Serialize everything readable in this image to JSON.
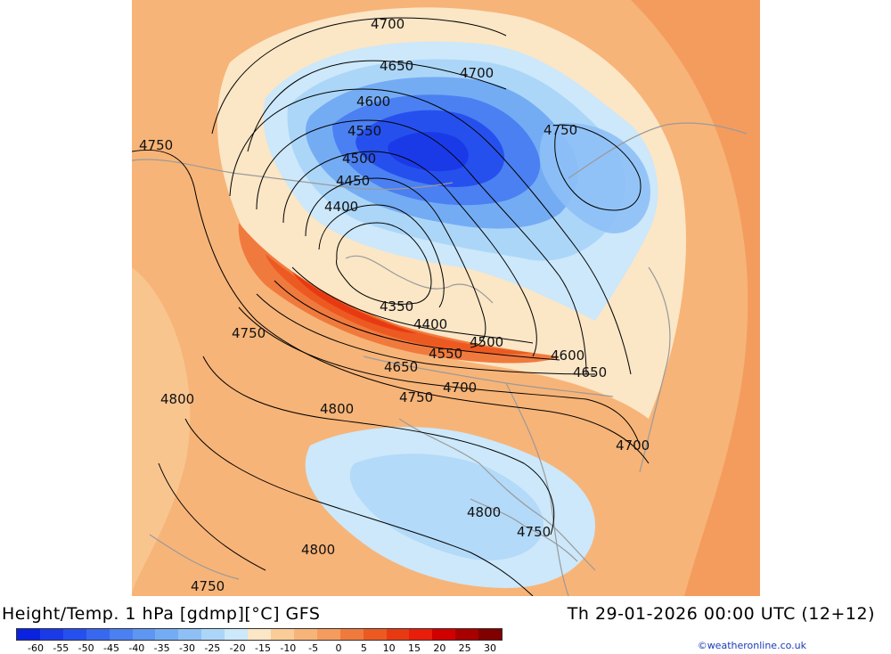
{
  "map": {
    "title": "Height/Temp. 1 hPa [gdmp][°C] GFS",
    "valid_time": "Th 29-01-2026 00:00 UTC (12+12)",
    "credit": "©weatheronline.co.uk",
    "contour_labels": [
      "4700",
      "4650",
      "4700",
      "4600",
      "4750",
      "4550",
      "4750",
      "4500",
      "4450",
      "4400",
      "4350",
      "4400",
      "4500",
      "4550",
      "4600",
      "4650",
      "4650",
      "4700",
      "4750",
      "4750",
      "4800",
      "4800",
      "4700",
      "4800",
      "4750",
      "4800",
      "4750"
    ],
    "legend": {
      "ticks": [
        "-60",
        "-55",
        "-50",
        "-45",
        "-40",
        "-35",
        "-30",
        "-25",
        "-20",
        "-15",
        "-10",
        "-5",
        "0",
        "5",
        "10",
        "15",
        "20",
        "25",
        "30"
      ],
      "colors": [
        "#0a22e0",
        "#1a3ae8",
        "#2650ee",
        "#3868f0",
        "#4a80f2",
        "#5e96f2",
        "#74acf4",
        "#8ec0f6",
        "#acd6f8",
        "#cce8fa",
        "#fbe6c6",
        "#f9cc98",
        "#f7b478",
        "#f49c5e",
        "#f07a3e",
        "#ec5a22",
        "#e83a12",
        "#e81e0a",
        "#d00000",
        "#a80000",
        "#800000"
      ]
    },
    "colors": {
      "background": "#ffffff",
      "contour": "#000000",
      "coast": "#9a9a9a"
    }
  }
}
